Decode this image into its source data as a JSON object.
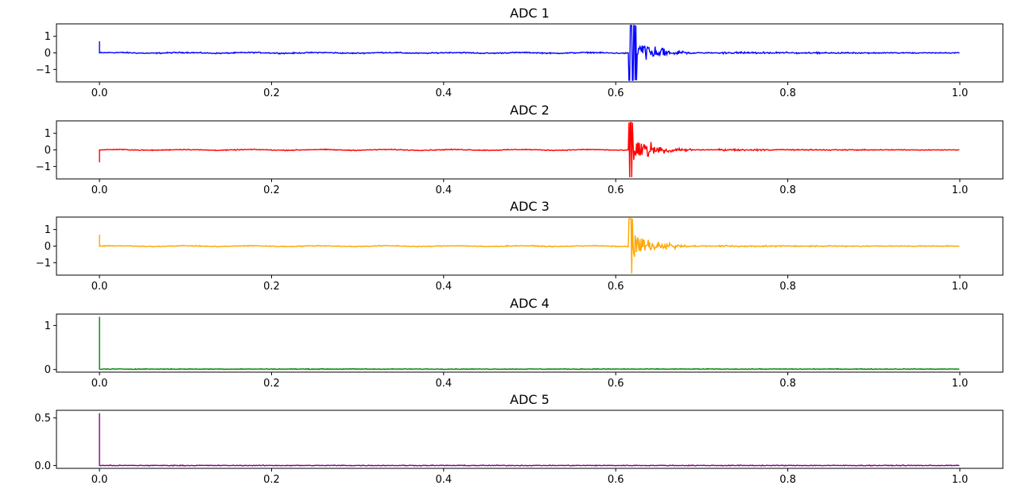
{
  "chart_data": [
    {
      "type": "line",
      "title": "ADC 1",
      "color": "#0000ff",
      "xlim": [
        -0.05,
        1.05
      ],
      "ylim": [
        -1.75,
        1.75
      ],
      "xticks": [
        0.0,
        0.2,
        0.4,
        0.6,
        0.8,
        1.0
      ],
      "xtick_labels": [
        "0.0",
        "0.2",
        "0.4",
        "0.6",
        "0.8",
        "1.0"
      ],
      "yticks": [
        1,
        0,
        -1
      ],
      "ytick_labels": [
        "1",
        "0",
        "−1"
      ],
      "series": {
        "start_spike": {
          "x": 0.0,
          "peak": 0.7
        },
        "baseline": {
          "level": 0.0,
          "noise": 0.05
        },
        "event": {
          "x_start": 0.615,
          "x_end": 0.625,
          "amplitude": 1.65,
          "decay_end": 0.72
        }
      }
    },
    {
      "type": "line",
      "title": "ADC 2",
      "color": "#ff0000",
      "xlim": [
        -0.05,
        1.05
      ],
      "ylim": [
        -1.75,
        1.75
      ],
      "xticks": [
        0.0,
        0.2,
        0.4,
        0.6,
        0.8,
        1.0
      ],
      "xtick_labels": [
        "0.0",
        "0.2",
        "0.4",
        "0.6",
        "0.8",
        "1.0"
      ],
      "yticks": [
        1,
        0,
        -1
      ],
      "ytick_labels": [
        "1",
        "0",
        "−1"
      ],
      "series": {
        "start_spike": {
          "x": 0.0,
          "peak": -0.75
        },
        "baseline": {
          "level": 0.0,
          "noise": 0.04
        },
        "event": {
          "x_start": 0.615,
          "x_end": 0.62,
          "amplitude": 1.65,
          "decay_end": 0.72
        }
      }
    },
    {
      "type": "line",
      "title": "ADC 3",
      "color": "#ffa500",
      "xlim": [
        -0.05,
        1.05
      ],
      "ylim": [
        -1.75,
        1.75
      ],
      "xticks": [
        0.0,
        0.2,
        0.4,
        0.6,
        0.8,
        1.0
      ],
      "xtick_labels": [
        "0.0",
        "0.2",
        "0.4",
        "0.6",
        "0.8",
        "1.0"
      ],
      "yticks": [
        1,
        0,
        -1
      ],
      "ytick_labels": [
        "1",
        "0",
        "−1"
      ],
      "series": {
        "start_spike": {
          "x": 0.0,
          "peak": 0.7
        },
        "baseline": {
          "level": 0.0,
          "noise": 0.04
        },
        "event": {
          "x_start": 0.615,
          "x_end": 0.62,
          "amplitude": 1.65,
          "decay_end": 0.72
        }
      }
    },
    {
      "type": "line",
      "title": "ADC 4",
      "color": "#008000",
      "xlim": [
        -0.05,
        1.05
      ],
      "ylim": [
        -0.06,
        1.26
      ],
      "xticks": [
        0.0,
        0.2,
        0.4,
        0.6,
        0.8,
        1.0
      ],
      "xtick_labels": [
        "0.0",
        "0.2",
        "0.4",
        "0.6",
        "0.8",
        "1.0"
      ],
      "yticks": [
        1,
        0
      ],
      "ytick_labels": [
        "1",
        "0"
      ],
      "series": {
        "start_spike": {
          "x": 0.0,
          "peak": 1.2
        },
        "baseline": {
          "level": 0.01,
          "noise": 0.012
        },
        "event": null
      }
    },
    {
      "type": "line",
      "title": "ADC 5",
      "color": "#800080",
      "xlim": [
        -0.05,
        1.05
      ],
      "ylim": [
        -0.03,
        0.58
      ],
      "xticks": [
        0.0,
        0.2,
        0.4,
        0.6,
        0.8,
        1.0
      ],
      "xtick_labels": [
        "0.0",
        "0.2",
        "0.4",
        "0.6",
        "0.8",
        "1.0"
      ],
      "yticks": [
        0.5,
        0.0
      ],
      "ytick_labels": [
        "0.5",
        "0.0"
      ],
      "series": {
        "start_spike": {
          "x": 0.0,
          "peak": 0.55
        },
        "baseline": {
          "level": 0.0,
          "noise": 0.006
        },
        "event": null
      }
    }
  ]
}
